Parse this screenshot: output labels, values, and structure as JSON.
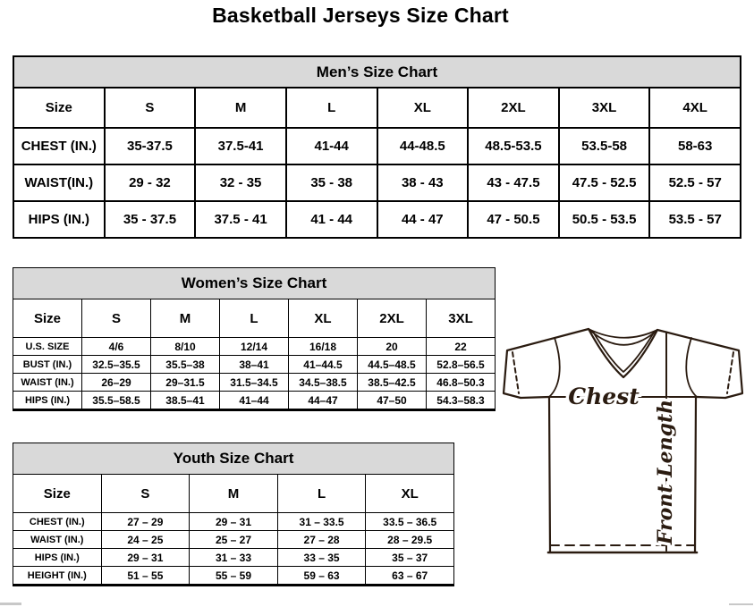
{
  "page": {
    "title": "Basketball Jerseys Size Chart"
  },
  "colors": {
    "header_band": "#d9d9d9",
    "table_border": "#000000",
    "jersey_outline": "#2a1b10"
  },
  "tables": {
    "men": {
      "title": "Men’s Size Chart",
      "size_label": "Size",
      "sizes": [
        "S",
        "M",
        "L",
        "XL",
        "2XL",
        "3XL",
        "4XL"
      ],
      "rows": [
        {
          "label": "CHEST (IN.)",
          "values": [
            "35-37.5",
            "37.5-41",
            "41-44",
            "44-48.5",
            "48.5-53.5",
            "53.5-58",
            "58-63"
          ]
        },
        {
          "label": "WAIST(IN.)",
          "values": [
            "29 - 32",
            "32 - 35",
            "35 - 38",
            "38 - 43",
            "43 - 47.5",
            "47.5 - 52.5",
            "52.5 - 57"
          ]
        },
        {
          "label": "HIPS (IN.)",
          "values": [
            "35 - 37.5",
            "37.5 - 41",
            "41 - 44",
            "44 - 47",
            "47 - 50.5",
            "50.5 - 53.5",
            "53.5 - 57"
          ]
        }
      ]
    },
    "women": {
      "title": "Women’s Size Chart",
      "size_label": "Size",
      "sizes": [
        "S",
        "M",
        "L",
        "XL",
        "2XL",
        "3XL"
      ],
      "rows": [
        {
          "label": "U.S. SIZE",
          "values": [
            "4/6",
            "8/10",
            "12/14",
            "16/18",
            "20",
            "22"
          ]
        },
        {
          "label": "BUST (IN.)",
          "values": [
            "32.5–35.5",
            "35.5–38",
            "38–41",
            "41–44.5",
            "44.5–48.5",
            "52.8–56.5"
          ]
        },
        {
          "label": "WAIST (IN.)",
          "values": [
            "26–29",
            "29–31.5",
            "31.5–34.5",
            "34.5–38.5",
            "38.5–42.5",
            "46.8–50.3"
          ]
        },
        {
          "label": "HIPS (IN.)",
          "values": [
            "35.5–58.5",
            "38.5–41",
            "41–44",
            "44–47",
            "47–50",
            "54.3–58.3"
          ]
        }
      ]
    },
    "youth": {
      "title": "Youth Size Chart",
      "size_label": "Size",
      "sizes": [
        "S",
        "M",
        "L",
        "XL"
      ],
      "rows": [
        {
          "label": "CHEST (IN.)",
          "values": [
            "27 – 29",
            "29 – 31",
            "31 – 33.5",
            "33.5 – 36.5"
          ]
        },
        {
          "label": "WAIST (IN.)",
          "values": [
            "24 – 25",
            "25 – 27",
            "27 – 28",
            "28 – 29.5"
          ]
        },
        {
          "label": "HIPS (IN.)",
          "values": [
            "29 – 31",
            "31 – 33",
            "33 – 35",
            "35 – 37"
          ]
        },
        {
          "label": "HEIGHT (IN.)",
          "values": [
            "51 – 55",
            "55 – 59",
            "59 – 63",
            "63 – 67"
          ]
        }
      ]
    }
  },
  "diagram": {
    "chest_label": "Chest",
    "front_length_label": "Front Length"
  }
}
